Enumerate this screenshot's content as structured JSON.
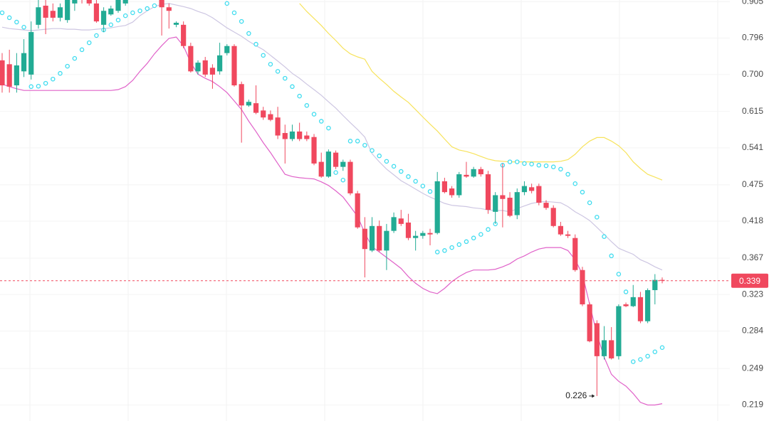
{
  "chart_data": {
    "type": "candlestick",
    "log_scale": true,
    "grid": true,
    "ylim": [
      0.207,
      0.91
    ],
    "yticks": [
      0.219,
      0.249,
      0.284,
      0.323,
      0.367,
      0.418,
      0.475,
      0.541,
      0.615,
      {
        "value": 0.7,
        "label": "0.700"
      },
      0.796,
      0.905
    ],
    "up_color": "#22ab94",
    "down_color": "#f0485e",
    "open": [
      0.736,
      0.726,
      0.674,
      0.708,
      0.7,
      0.834,
      0.892,
      0.876,
      0.855,
      0.848,
      0.899,
      0.928,
      0.91,
      0.899,
      0.834,
      0.865,
      0.876,
      0.899,
      0.921,
      0.933,
      0.944,
      0.933,
      0.917,
      0.887,
      0.834,
      0.834,
      0.774,
      0.708,
      0.736,
      0.717,
      0.708,
      0.755,
      0.774,
      0.677,
      0.628,
      0.633,
      0.617,
      0.609,
      0.602,
      0.57,
      0.558,
      0.573,
      0.565,
      0.562,
      0.515,
      0.489,
      0.532,
      0.506,
      0.515,
      0.461,
      0.407,
      0.377,
      0.411,
      0.377,
      0.404,
      0.422,
      0.416,
      0.394,
      0.397,
      0.401,
      0.401,
      0.481,
      0.469,
      0.458,
      0.492,
      0.489,
      0.502,
      0.493,
      0.432,
      0.458,
      0.454,
      0.427,
      0.463,
      0.471,
      0.473,
      0.446,
      0.438,
      0.411,
      0.399,
      0.394,
      0.352,
      0.312,
      0.292,
      0.26,
      0.275,
      0.26,
      0.312,
      0.31,
      0.32,
      0.294,
      0.328,
      0.34
    ],
    "high": [
      0.755,
      0.764,
      0.755,
      0.793,
      0.844,
      0.91,
      0.91,
      0.899,
      0.899,
      0.921,
      0.933,
      0.938,
      0.933,
      0.91,
      0.887,
      0.892,
      0.921,
      0.933,
      0.944,
      0.956,
      0.956,
      0.944,
      0.928,
      0.899,
      0.844,
      0.844,
      0.783,
      0.736,
      0.745,
      0.726,
      0.783,
      0.779,
      0.779,
      0.683,
      0.641,
      0.674,
      0.625,
      0.617,
      0.625,
      0.587,
      0.587,
      0.591,
      0.573,
      0.568,
      0.532,
      0.538,
      0.536,
      0.519,
      0.519,
      0.465,
      0.424,
      0.424,
      0.419,
      0.414,
      0.431,
      0.435,
      0.429,
      0.404,
      0.404,
      0.407,
      0.497,
      0.487,
      0.473,
      0.497,
      0.515,
      0.506,
      0.506,
      0.499,
      0.463,
      0.512,
      0.463,
      0.469,
      0.481,
      0.477,
      0.477,
      0.45,
      0.442,
      0.417,
      0.404,
      0.399,
      0.356,
      0.314,
      0.295,
      0.289,
      0.288,
      0.312,
      0.314,
      0.334,
      0.326,
      0.33,
      0.347,
      0.343
    ],
    "low": [
      0.657,
      0.657,
      0.657,
      0.694,
      0.688,
      0.823,
      0.807,
      0.844,
      0.844,
      0.84,
      0.876,
      0.899,
      0.892,
      0.84,
      0.813,
      0.861,
      0.87,
      0.892,
      0.91,
      0.921,
      0.928,
      0.91,
      0.803,
      0.823,
      0.827,
      0.768,
      0.705,
      0.7,
      0.694,
      0.666,
      0.7,
      0.749,
      0.671,
      0.551,
      0.625,
      0.609,
      0.597,
      0.594,
      0.558,
      0.512,
      0.554,
      0.554,
      0.554,
      0.509,
      0.487,
      0.487,
      0.502,
      0.499,
      0.458,
      0.407,
      0.343,
      0.375,
      0.375,
      0.352,
      0.401,
      0.411,
      0.391,
      0.377,
      0.393,
      0.384,
      0.399,
      0.461,
      0.454,
      0.454,
      0.487,
      0.487,
      0.489,
      0.429,
      0.414,
      0.409,
      0.424,
      0.421,
      0.458,
      0.461,
      0.442,
      0.435,
      0.409,
      0.397,
      0.394,
      0.35,
      0.31,
      0.273,
      0.226,
      0.257,
      0.257,
      0.257,
      0.309,
      0.309,
      0.292,
      0.292,
      0.312,
      0.336
    ],
    "close": [
      0.674,
      0.671,
      0.723,
      0.755,
      0.813,
      0.887,
      0.855,
      0.855,
      0.887,
      0.91,
      0.921,
      0.91,
      0.899,
      0.844,
      0.876,
      0.883,
      0.91,
      0.921,
      0.933,
      0.944,
      0.933,
      0.921,
      0.887,
      0.876,
      0.84,
      0.774,
      0.708,
      0.73,
      0.7,
      0.7,
      0.749,
      0.774,
      0.674,
      0.628,
      0.636,
      0.612,
      0.602,
      0.597,
      0.565,
      0.558,
      0.573,
      0.558,
      0.558,
      0.512,
      0.489,
      0.534,
      0.506,
      0.515,
      0.461,
      0.409,
      0.379,
      0.411,
      0.377,
      0.404,
      0.424,
      0.414,
      0.394,
      0.397,
      0.401,
      0.399,
      0.481,
      0.463,
      0.458,
      0.493,
      0.489,
      0.502,
      0.493,
      0.435,
      0.458,
      0.452,
      0.426,
      0.463,
      0.473,
      0.465,
      0.446,
      0.438,
      0.411,
      0.399,
      0.397,
      0.352,
      0.312,
      0.274,
      0.26,
      0.275,
      0.258,
      0.31,
      0.31,
      0.32,
      0.294,
      0.328,
      0.34,
      0.339
    ],
    "bands": [
      {
        "color": "#f7e35c",
        "values": [
          null,
          null,
          null,
          null,
          null,
          null,
          null,
          null,
          null,
          null,
          null,
          null,
          null,
          null,
          null,
          null,
          null,
          null,
          null,
          null,
          null,
          null,
          null,
          null,
          null,
          null,
          null,
          null,
          null,
          null,
          null,
          null,
          null,
          null,
          null,
          null,
          null,
          null,
          null,
          null,
          null,
          0.899,
          0.874,
          0.853,
          0.832,
          0.809,
          0.789,
          0.768,
          0.753,
          0.745,
          0.739,
          0.708,
          0.691,
          0.676,
          0.66,
          0.647,
          0.635,
          0.619,
          0.603,
          0.588,
          0.574,
          0.558,
          0.543,
          0.537,
          0.534,
          0.53,
          0.525,
          0.52,
          0.517,
          0.516,
          0.515,
          0.515,
          0.515,
          0.515,
          0.515,
          0.515,
          0.515,
          0.516,
          0.519,
          0.529,
          0.543,
          0.554,
          0.561,
          0.561,
          0.554,
          0.545,
          0.532,
          0.515,
          0.503,
          0.493,
          0.488,
          0.483
        ]
      },
      {
        "color": "#cdc6e2",
        "values": [
          0.827,
          0.823,
          0.821,
          0.819,
          0.817,
          0.819,
          0.821,
          0.823,
          0.823,
          0.821,
          0.821,
          0.819,
          0.819,
          0.821,
          0.823,
          0.825,
          0.829,
          0.832,
          0.842,
          0.861,
          0.876,
          0.889,
          0.896,
          0.899,
          0.894,
          0.889,
          0.883,
          0.874,
          0.867,
          0.855,
          0.84,
          0.825,
          0.813,
          0.801,
          0.787,
          0.775,
          0.764,
          0.749,
          0.734,
          0.719,
          0.703,
          0.691,
          0.677,
          0.664,
          0.651,
          0.636,
          0.622,
          0.606,
          0.591,
          0.577,
          0.562,
          0.53,
          0.515,
          0.502,
          0.492,
          0.482,
          0.475,
          0.468,
          0.461,
          0.455,
          0.45,
          0.445,
          0.442,
          0.441,
          0.44,
          0.438,
          0.437,
          0.435,
          0.434,
          0.434,
          0.432,
          0.437,
          0.441,
          0.445,
          0.447,
          0.448,
          0.447,
          0.446,
          0.44,
          0.432,
          0.426,
          0.419,
          0.409,
          0.399,
          0.389,
          0.38,
          0.376,
          0.372,
          0.365,
          0.361,
          0.356,
          0.352
        ]
      },
      {
        "color": "#e062c9",
        "values": [
          0.677,
          0.671,
          0.666,
          0.662,
          0.662,
          0.662,
          0.662,
          0.662,
          0.662,
          0.662,
          0.662,
          0.662,
          0.662,
          0.662,
          0.662,
          0.662,
          0.664,
          0.671,
          0.686,
          0.708,
          0.728,
          0.753,
          0.775,
          0.795,
          0.799,
          0.774,
          0.73,
          0.701,
          0.691,
          0.683,
          0.671,
          0.657,
          0.638,
          0.619,
          0.594,
          0.573,
          0.551,
          0.532,
          0.512,
          0.493,
          0.489,
          0.487,
          0.486,
          0.485,
          0.48,
          0.474,
          0.465,
          0.455,
          0.44,
          0.425,
          0.401,
          0.382,
          0.375,
          0.368,
          0.361,
          0.354,
          0.344,
          0.336,
          0.33,
          0.326,
          0.324,
          0.33,
          0.338,
          0.344,
          0.349,
          0.352,
          0.352,
          0.352,
          0.353,
          0.356,
          0.36,
          0.366,
          0.37,
          0.375,
          0.379,
          0.381,
          0.381,
          0.381,
          0.377,
          0.365,
          0.347,
          0.312,
          0.281,
          0.259,
          0.244,
          0.238,
          0.234,
          0.228,
          0.221,
          0.219,
          0.219,
          0.22
        ]
      }
    ],
    "sar": {
      "color": "#3fdcef",
      "values": [
        0.87,
        0.855,
        0.842,
        0.827,
        0.671,
        0.672,
        0.679,
        0.689,
        0.703,
        0.721,
        0.741,
        0.764,
        0.783,
        0.803,
        0.819,
        0.834,
        0.848,
        0.861,
        0.87,
        0.876,
        0.883,
        0.892,
        0.899,
        null,
        null,
        null,
        null,
        null,
        null,
        null,
        null,
        0.899,
        0.87,
        0.844,
        0.809,
        0.779,
        0.749,
        0.726,
        0.708,
        0.691,
        0.671,
        0.649,
        0.628,
        0.609,
        0.594,
        0.58,
        0.496,
        0.483,
        0.554,
        0.554,
        0.546,
        0.536,
        0.526,
        0.516,
        0.507,
        0.498,
        0.489,
        0.481,
        0.473,
        0.464,
        0.375,
        0.377,
        0.381,
        0.385,
        0.389,
        0.394,
        0.399,
        0.406,
        0.414,
        0.509,
        0.515,
        0.515,
        0.512,
        0.511,
        0.509,
        0.508,
        0.506,
        0.502,
        0.493,
        0.477,
        0.463,
        0.446,
        0.424,
        0.396,
        0.37,
        0.347,
        0.326,
        0.255,
        0.257,
        0.26,
        0.264,
        0.268
      ]
    },
    "last_price": 0.339,
    "annotation": 0.226
  }
}
